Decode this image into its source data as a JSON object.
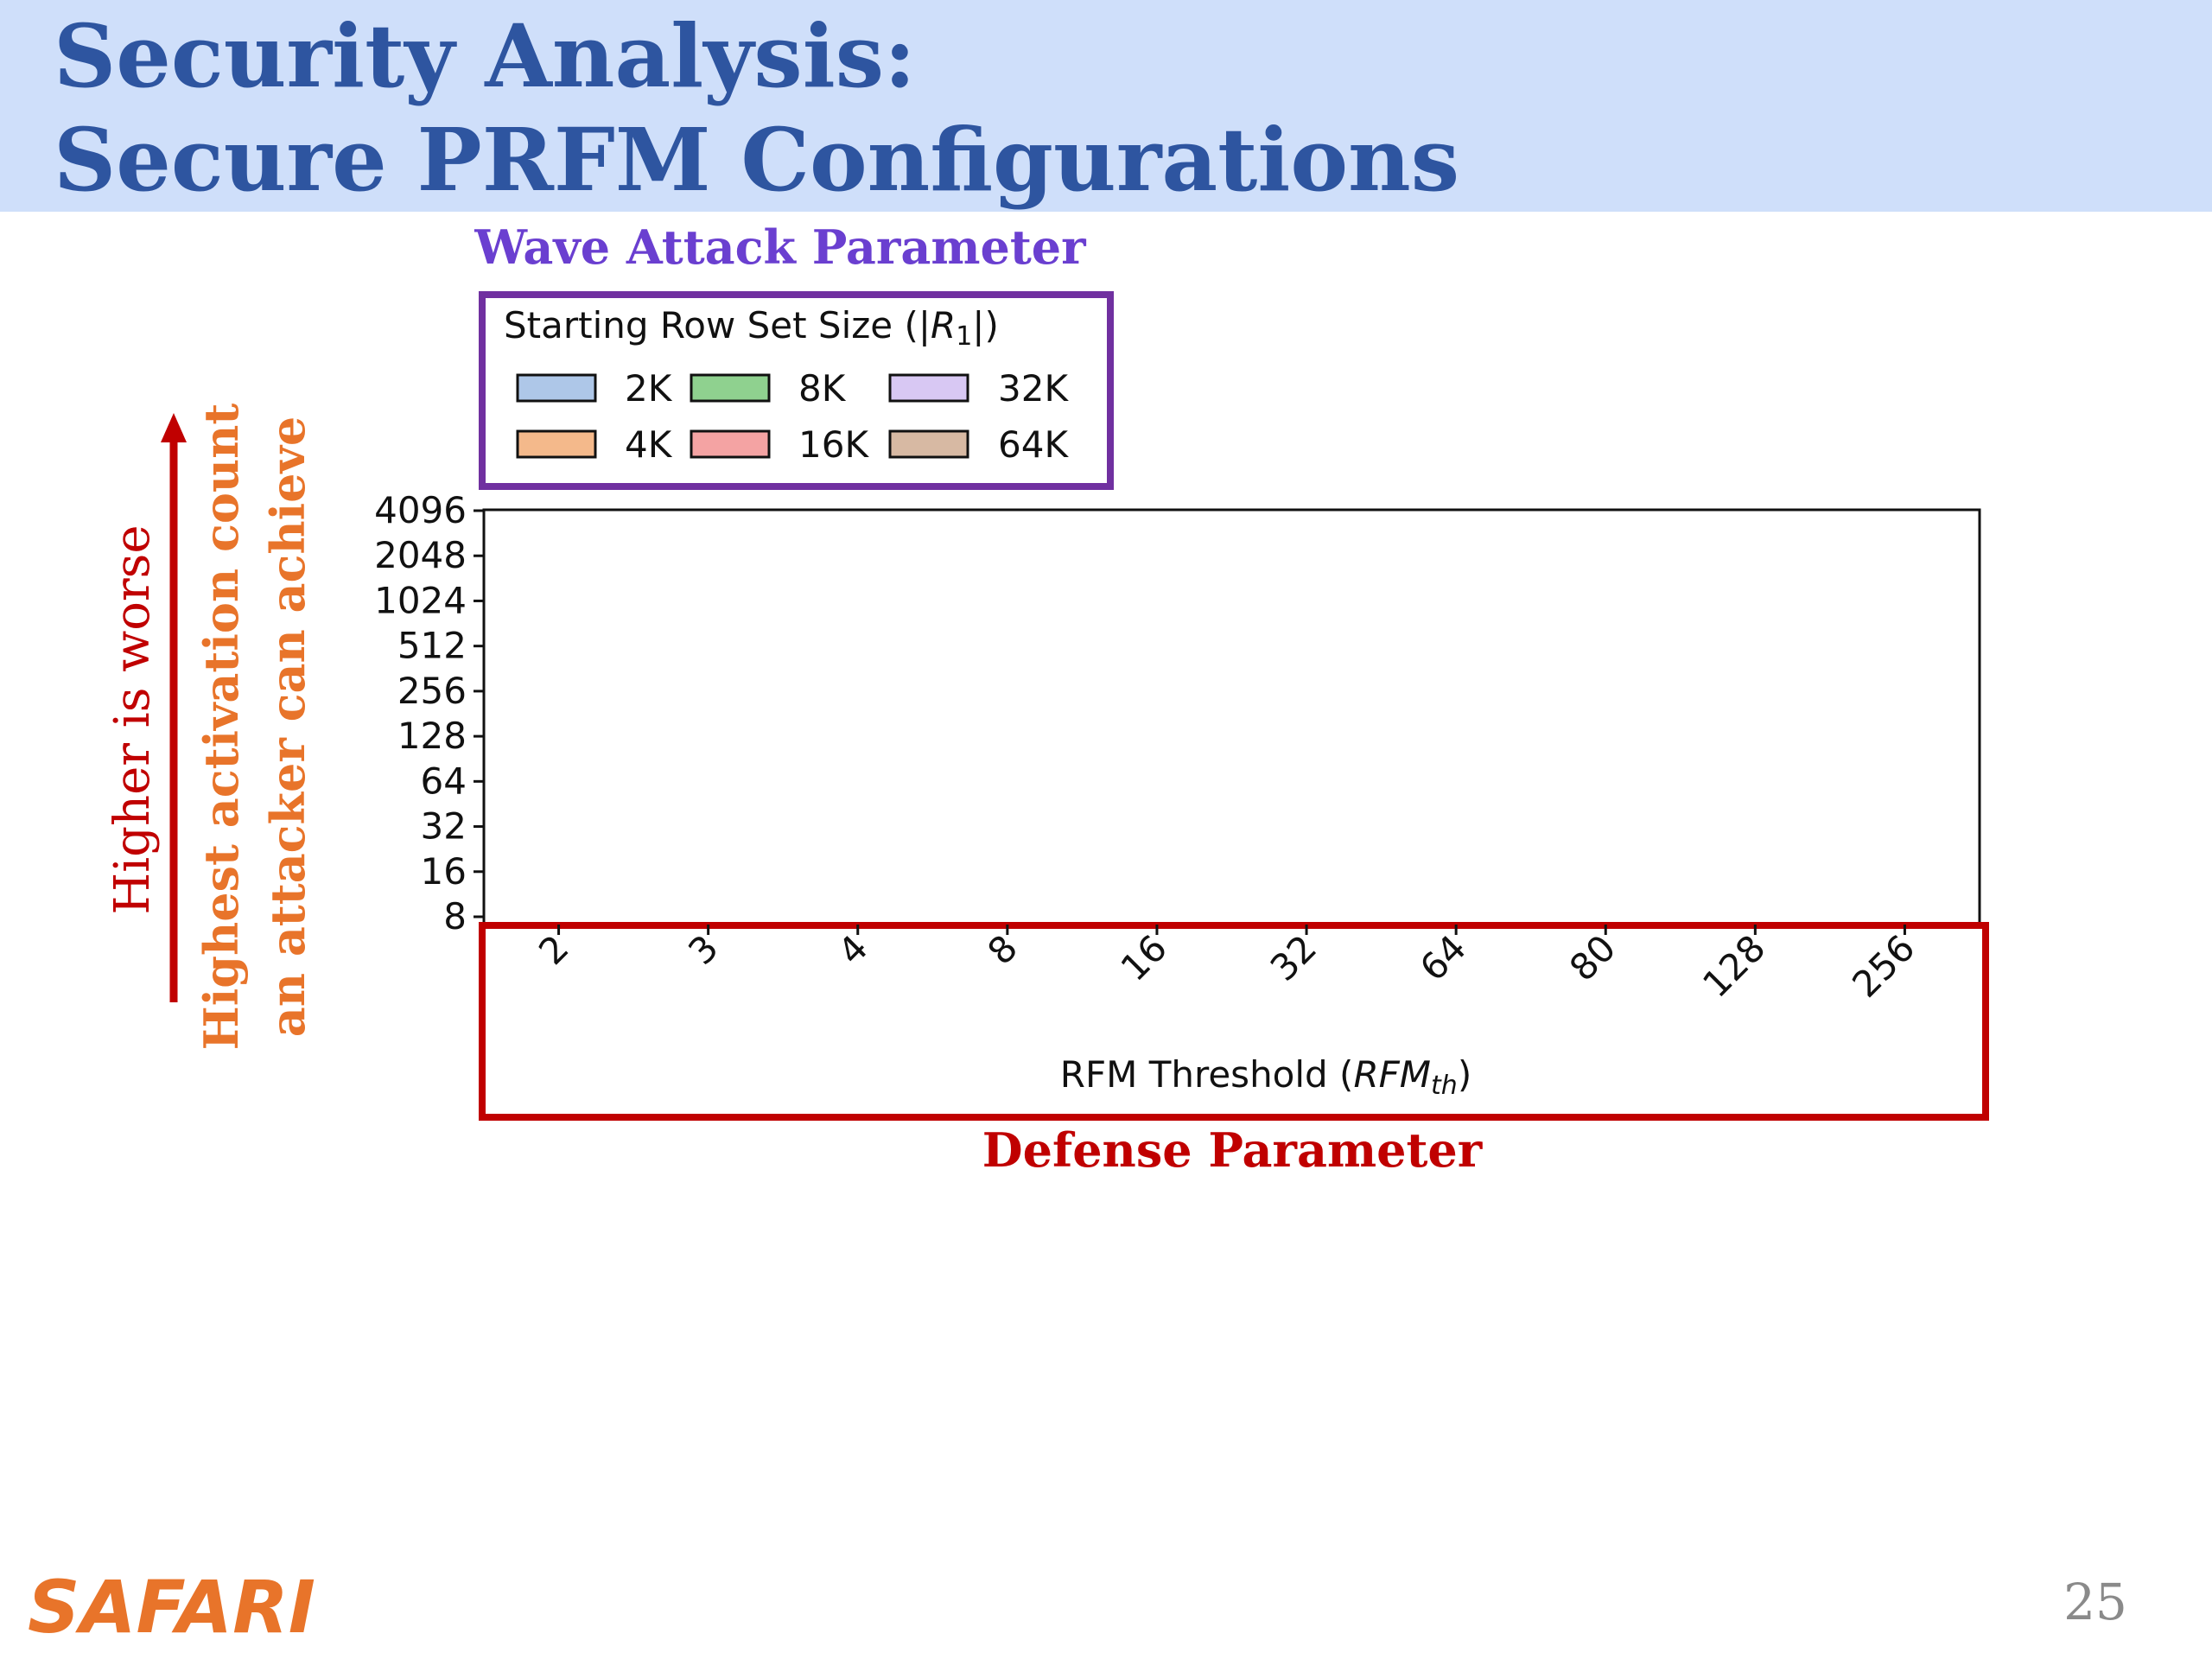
{
  "header": {
    "title_lines": [
      "Security Analysis:",
      "Secure PRFM Configurations"
    ]
  },
  "annotations": {
    "attack_parameter": "Wave Attack Parameter",
    "defense_parameter": "Defense Parameter",
    "higher_is_worse": "Higher is worse",
    "y_meaning_lines": [
      "Highest activation count",
      "an attacker can achieve"
    ]
  },
  "chart_data": {
    "type": "bar",
    "legend_title_parts": [
      "Starting Row Set Size (|",
      "R",
      "1",
      "|)"
    ],
    "x_label_parts": [
      "RFM Threshold (",
      "RFM",
      "th",
      ")"
    ],
    "categories": [
      "2",
      "3",
      "4",
      "8",
      "16",
      "32",
      "64",
      "80",
      "128",
      "256"
    ],
    "series": [
      {
        "name": "2K",
        "color": "#aec7e8"
      },
      {
        "name": "4K",
        "color": "#f4b98b"
      },
      {
        "name": "8K",
        "color": "#8fd18f"
      },
      {
        "name": "16K",
        "color": "#f4a3a3"
      },
      {
        "name": "32K",
        "color": "#d8c8f3"
      },
      {
        "name": "64K",
        "color": "#d7b9a3"
      }
    ],
    "log_scale": true,
    "ylim": [
      8,
      4096
    ],
    "yticks": [
      8,
      16,
      32,
      64,
      128,
      256,
      512,
      1024,
      2048,
      4096
    ],
    "grid": false
  },
  "footer": {
    "logo": "SAFARI",
    "page_number": 25
  }
}
